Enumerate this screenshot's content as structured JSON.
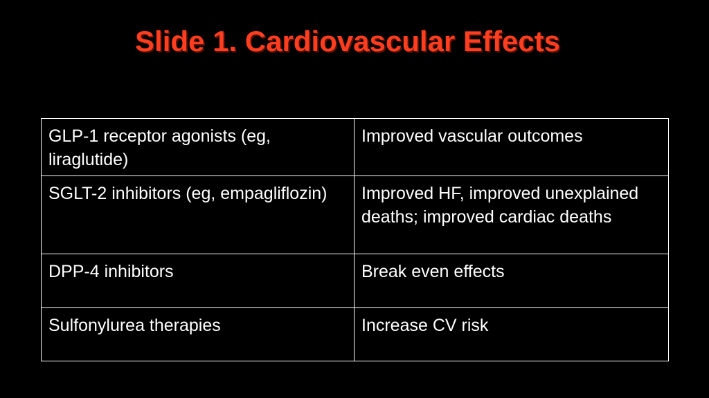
{
  "slide": {
    "title": "Slide 1. Cardiovascular Effects",
    "title_color": "#ff3d1f",
    "background_color": "#000000"
  },
  "table": {
    "rows": [
      {
        "therapy": "GLP-1 receptor agonists (eg, liraglutide)",
        "effect": "Improved vascular outcomes"
      },
      {
        "therapy": "SGLT-2 inhibitors (eg, empagliflozin)",
        "effect": "Improved HF, improved unexplained deaths; improved cardiac deaths"
      },
      {
        "therapy": "DPP-4 inhibitors",
        "effect": "Break even effects"
      },
      {
        "therapy": "Sulfonylurea therapies",
        "effect": "Increase CV risk"
      }
    ]
  }
}
